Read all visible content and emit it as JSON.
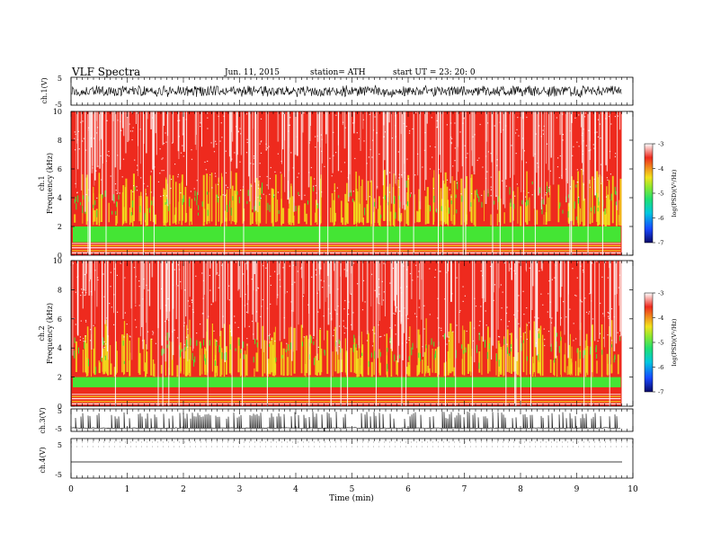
{
  "header": {
    "title": "VLF  Spectra",
    "date": "Jun. 11, 2015",
    "station": "station= ATH",
    "start": "start  UT =   23: 20: 0"
  },
  "chart_data": {
    "type": "heatmap",
    "xlabel": "Time  (min)",
    "xlim": [
      0,
      10
    ],
    "xticks": [
      "0",
      "1",
      "2",
      "3",
      "4",
      "5",
      "6",
      "7",
      "8",
      "9",
      "10"
    ],
    "data_end_min": 9.8,
    "panels": [
      {
        "kind": "waveform",
        "ylabel": "ch.1(V)",
        "ylim": [
          -5,
          5
        ],
        "yticks": [
          "5",
          "-5"
        ],
        "amplitude_V": 2.2
      },
      {
        "kind": "spectrogram",
        "ylabel_line1": "ch.1",
        "ylabel_line2": "Frequency  (kHz)",
        "ylim_kHz": [
          0,
          10
        ],
        "yticks": [
          "10",
          "8",
          "6",
          "4",
          "2",
          "0"
        ],
        "green_band_kHz": [
          0.9,
          2.0
        ],
        "colorbar": {
          "label": "log(PSD)(V²/Hz)",
          "range": [
            -7,
            -3
          ],
          "ticks": [
            "-3",
            "-4",
            "-5",
            "-6",
            "-7"
          ]
        }
      },
      {
        "kind": "spectrogram",
        "ylabel_line1": "ch.2",
        "ylabel_line2": "Frequency  (kHz)",
        "ylim_kHz": [
          0,
          10
        ],
        "yticks": [
          "10",
          "8",
          "6",
          "4",
          "2",
          "0"
        ],
        "green_band_kHz": [
          1.3,
          2.0
        ],
        "colorbar": {
          "label": "log(PSD)(V²/Hz)",
          "range": [
            -7,
            -3
          ],
          "ticks": [
            "-3",
            "-4",
            "-5",
            "-6",
            "-7"
          ]
        }
      },
      {
        "kind": "waveform",
        "ylabel": "ch.3(V)",
        "ylim": [
          -5,
          5
        ],
        "yticks": [
          "5",
          "-5"
        ],
        "baseline_V": -3.5
      },
      {
        "kind": "waveform",
        "ylabel": "ch.4(V)",
        "ylim": [
          -5,
          5
        ],
        "yticks": [
          "5",
          "-5"
        ],
        "baseline_V": 0
      }
    ],
    "colors": {
      "bg_red": "#ee2a1e",
      "light": "#f6c8c2",
      "yellow": "#f2e21c",
      "green": "#44e534",
      "cyan": "#00e0c8",
      "blue": "#1848ff",
      "navy": "#0a0a6a"
    }
  }
}
